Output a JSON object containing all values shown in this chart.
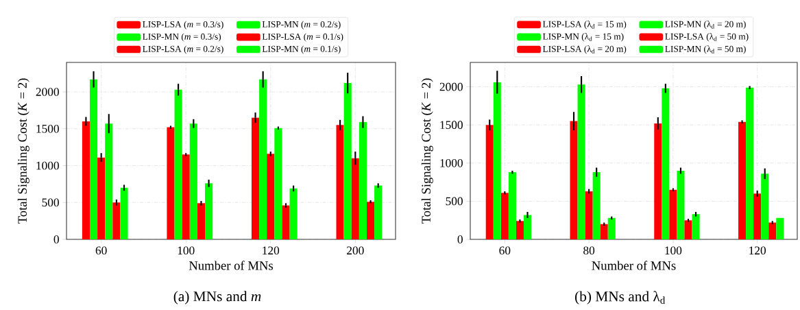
{
  "chart_data": [
    {
      "type": "bar",
      "xlabel": "Number of MNs",
      "ylabel": "Total Signaling Cost (*K* = 2)",
      "categories": [
        "60",
        "100",
        "120",
        "200"
      ],
      "series": [
        {
          "name": "LISP-LSA (*m* = 0.3/s)",
          "color": "#ff0000",
          "values": [
            1600,
            1520,
            1650,
            1550
          ],
          "errors": [
            60,
            20,
            70,
            70
          ]
        },
        {
          "name": "LISP-MN (*m* = 0.3/s)",
          "color": "#00ff00",
          "values": [
            2170,
            2030,
            2170,
            2120
          ],
          "errors": [
            110,
            80,
            110,
            140
          ]
        },
        {
          "name": "LISP-LSA (*m* = 0.2/s)",
          "color": "#ff0000",
          "values": [
            1110,
            1150,
            1160,
            1100
          ],
          "errors": [
            60,
            20,
            30,
            90
          ]
        },
        {
          "name": "LISP-MN (*m* = 0.2/s)",
          "color": "#00ff00",
          "values": [
            1570,
            1570,
            1510,
            1590
          ],
          "errors": [
            130,
            60,
            20,
            80
          ]
        },
        {
          "name": "LISP-LSA (*m* = 0.1/s)",
          "color": "#ff0000",
          "values": [
            500,
            490,
            460,
            510
          ],
          "errors": [
            40,
            30,
            30,
            20
          ]
        },
        {
          "name": "LISP-MN (*m* = 0.1/s)",
          "color": "#00ff00",
          "values": [
            700,
            760,
            690,
            730
          ],
          "errors": [
            40,
            50,
            40,
            30
          ]
        }
      ],
      "ylim": [
        0,
        2400
      ],
      "yticks": [
        0,
        500,
        1000,
        1500,
        2000
      ],
      "grid": true,
      "legend": "top",
      "annotations": [
        "(a) MNs and *m*"
      ]
    },
    {
      "type": "bar",
      "xlabel": "Number of MNs",
      "ylabel": "Total Signaling Cost (*K* = 2)",
      "categories": [
        "60",
        "80",
        "100",
        "120"
      ],
      "series": [
        {
          "name": "LISP-LSA (λ$_{d}$ = 15 m)",
          "color": "#ff0000",
          "values": [
            1500,
            1550,
            1520,
            1540
          ],
          "errors": [
            70,
            120,
            80,
            20
          ]
        },
        {
          "name": "LISP-MN (λ$_{d}$ = 15 m)",
          "color": "#00ff00",
          "values": [
            2060,
            2030,
            1980,
            1990
          ],
          "errors": [
            150,
            110,
            60,
            20
          ]
        },
        {
          "name": "LISP-LSA (λ$_{d}$ = 20 m)",
          "color": "#ff0000",
          "values": [
            610,
            630,
            650,
            600
          ],
          "errors": [
            20,
            30,
            20,
            40
          ]
        },
        {
          "name": "LISP-MN (λ$_{d}$ = 20 m)",
          "color": "#00ff00",
          "values": [
            880,
            880,
            900,
            860
          ],
          "errors": [
            20,
            60,
            40,
            70
          ]
        },
        {
          "name": "LISP-LSA (λ$_{d}$ = 50 m)",
          "color": "#ff0000",
          "values": [
            240,
            200,
            250,
            220
          ],
          "errors": [
            20,
            20,
            20,
            20
          ]
        },
        {
          "name": "LISP-MN (λ$_{d}$ = 50 m)",
          "color": "#00ff00",
          "values": [
            320,
            280,
            330,
            280
          ],
          "errors": [
            40,
            20,
            30,
            0
          ]
        }
      ],
      "ylim": [
        0,
        2320
      ],
      "yticks": [
        0,
        500,
        1000,
        1500,
        2000
      ],
      "grid": true,
      "legend": "top",
      "annotations": [
        "(b) MNs and λ$_{d}$"
      ]
    }
  ]
}
